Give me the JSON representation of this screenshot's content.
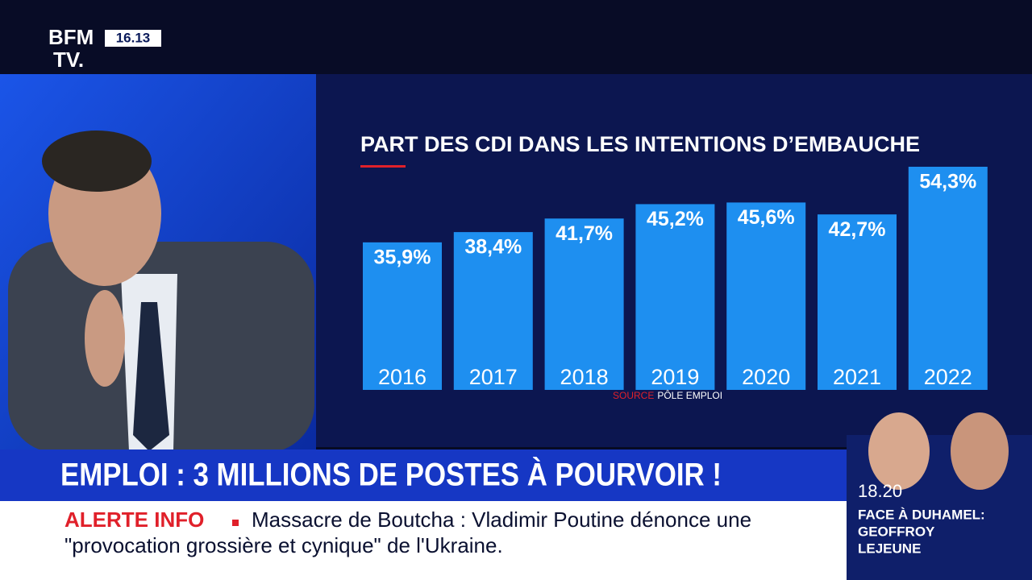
{
  "channel": {
    "logo_top": "BFM",
    "logo_bottom": "TV.",
    "clock": "16.13"
  },
  "chart_data": {
    "type": "bar",
    "title": "PART DES CDI DANS LES INTENTIONS D’EMBAUCHE",
    "categories": [
      "2016",
      "2017",
      "2018",
      "2019",
      "2020",
      "2021",
      "2022"
    ],
    "values": [
      35.9,
      38.4,
      41.7,
      45.2,
      45.6,
      42.7,
      54.3
    ],
    "value_labels": [
      "35,9%",
      "38,4%",
      "41,7%",
      "45,2%",
      "45,6%",
      "42,7%",
      "54,3%"
    ],
    "color": "#1e8ff0",
    "source_label": "SOURCE",
    "source": "PÔLE EMPLOI"
  },
  "headline": "EMPLOI : 3 MILLIONS DE POSTES À POURVOIR !",
  "ticker": {
    "label": "ALERTE INFO",
    "line1": "Massacre de Boutcha : Vladimir Poutine dénonce une",
    "line2": "\"provocation grossière et cynique\" de l'Ukraine."
  },
  "next_show": {
    "time": "18.20",
    "title": "FACE À DUHAMEL:",
    "guest_first": "GEOFFROY",
    "guest_last": "LEJEUNE"
  }
}
